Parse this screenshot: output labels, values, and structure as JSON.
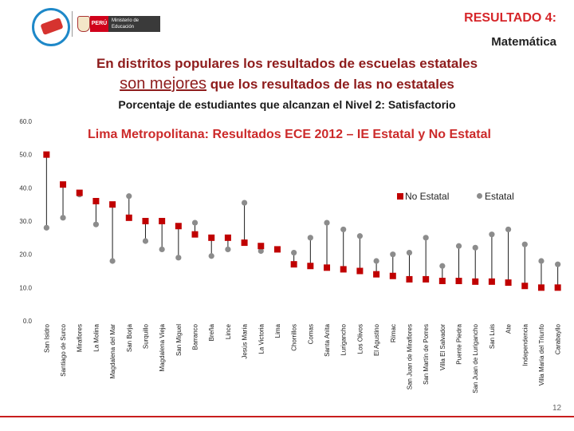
{
  "header": {
    "result_label": "RESULTADO 4:",
    "subject": "Matemática",
    "peru_label": "PERÚ",
    "ministry_label": "Ministerio de Educación"
  },
  "headline": {
    "line1": "En distritos populares los resultados de escuelas estatales",
    "line2_emphasis": "son mejores",
    "line2_rest": " que los resultados de las no estatales"
  },
  "page_number": "12",
  "chart_data": {
    "type": "scatter",
    "title": "Porcentaje de estudiantes que alcanzan el Nivel 2: Satisfactorio",
    "subtitle": "Lima Metropolitana: Resultados ECE 2012 – IE Estatal y No Estatal",
    "ylim": [
      0,
      60
    ],
    "yticks": [
      "0.0",
      "10.0",
      "20.0",
      "30.0",
      "40.0",
      "50.0",
      "60.0"
    ],
    "legend_position": "top-right",
    "categories": [
      "San Isidro",
      "Santiago de Surco",
      "Miraflores",
      "La Molina",
      "Magdalena del Mar",
      "San Borja",
      "Surquillo",
      "Magdalena Vieja",
      "San Miguel",
      "Barranco",
      "Breña",
      "Lince",
      "Jesús María",
      "La Victoria",
      "Lima",
      "Chorrillos",
      "Comas",
      "Santa Anita",
      "Lurigancho",
      "Los Olivos",
      "El Agustino",
      "Rímac",
      "San Juan de Miraflores",
      "San Martín de Porres",
      "Villa El Salvador",
      "Puente Piedra",
      "San Juan de Lurigancho",
      "San Luis",
      "Ate",
      "Independencia",
      "Villa María del Triunfo",
      "Carabayllo"
    ],
    "series": [
      {
        "name": "No Estatal",
        "color": "#c00000",
        "marker": "square",
        "values": [
          50,
          41,
          38.5,
          36,
          35,
          31,
          30,
          30,
          28.5,
          26,
          25,
          25,
          23.5,
          22.5,
          21.5,
          17,
          16.5,
          16,
          15.5,
          15,
          14,
          13.5,
          12.5,
          12.5,
          12,
          12,
          11.8,
          11.8,
          11.5,
          10.5,
          10,
          10
        ]
      },
      {
        "name": "Estatal",
        "color": "#8c8c8c",
        "marker": "circle",
        "values": [
          28,
          31,
          38,
          29,
          18,
          37.5,
          24,
          21.5,
          19,
          29.5,
          19.5,
          21.5,
          35.5,
          21,
          21.5,
          20.5,
          25,
          29.5,
          27.5,
          25.5,
          18,
          20,
          20.5,
          25,
          16.5,
          22.5,
          22,
          26,
          27.5,
          23,
          18,
          17
        ]
      }
    ]
  }
}
